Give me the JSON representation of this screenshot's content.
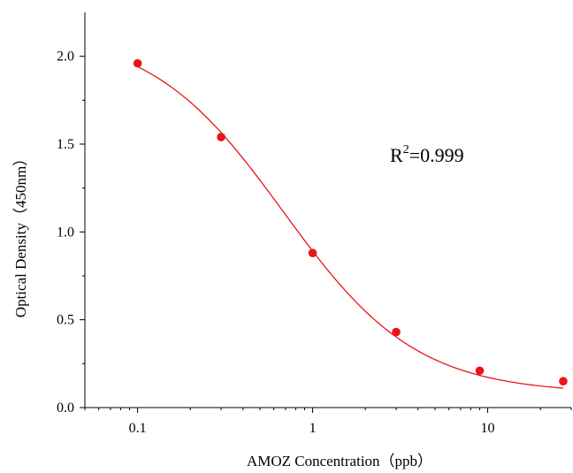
{
  "chart_data": {
    "type": "scatter",
    "xscale": "log",
    "xlabel": "AMOZ Concentration（ppb）",
    "ylabel": "Optical Density（450nm）",
    "xlim": [
      0.05,
      30
    ],
    "ylim": [
      0,
      2.25
    ],
    "x_ticks": [
      0.1,
      1,
      10
    ],
    "x_tick_labels": [
      "0.1",
      "1",
      "10"
    ],
    "y_ticks": [
      0,
      0.5,
      1.0,
      1.5,
      2.0
    ],
    "y_tick_labels": [
      "0.0",
      "0.5",
      "1.0",
      "1.5",
      "2.0"
    ],
    "series": [
      {
        "points": [
          {
            "x": 0.1,
            "y": 1.96
          },
          {
            "x": 0.3,
            "y": 1.54
          },
          {
            "x": 1,
            "y": 0.88
          },
          {
            "x": 3,
            "y": 0.43
          },
          {
            "x": 9,
            "y": 0.21
          },
          {
            "x": 27,
            "y": 0.15
          }
        ],
        "color": "#e8161b"
      }
    ],
    "fit": {
      "type": "4PL",
      "top": 2.15,
      "bottom": 0.08,
      "ec50": 0.68,
      "hill": 1.14,
      "color": "#e8161b"
    },
    "annotation": {
      "base": "R",
      "sup": "2",
      "rest": "=0.999"
    },
    "grid": false
  }
}
